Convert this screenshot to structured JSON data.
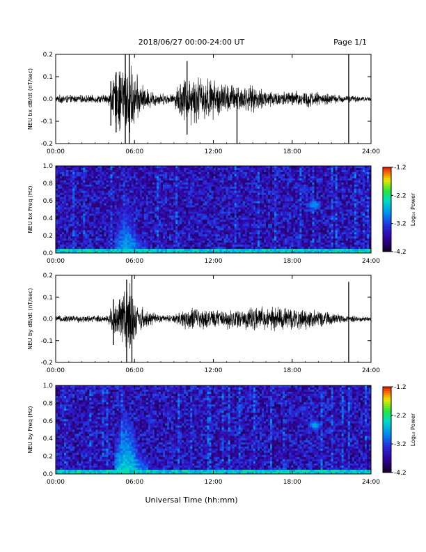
{
  "header": {
    "title": "2018/06/27  00:00-24:00 UT",
    "page": "Page 1/1"
  },
  "footer": {
    "xlabel": "Universal Time (hh:mm)"
  },
  "chart_data": [
    {
      "type": "line",
      "ylabel": "NEU bx dB/dt (nT/sec)",
      "x_ticks": [
        "00:00",
        "06:00",
        "12:00",
        "18:00",
        "24:00"
      ],
      "x_range_hours": [
        0,
        24
      ],
      "ylim": [
        -0.2,
        0.2
      ],
      "y_ticks": [
        "-0.2",
        "-0.1",
        "0.0",
        "0.1",
        "0.2"
      ],
      "envelope": [
        {
          "x": 0.0,
          "amp": 0.015
        },
        {
          "x": 0.5,
          "amp": 0.025
        },
        {
          "x": 1.0,
          "amp": 0.02
        },
        {
          "x": 2.0,
          "amp": 0.02
        },
        {
          "x": 3.0,
          "amp": 0.02
        },
        {
          "x": 4.0,
          "amp": 0.025
        },
        {
          "x": 4.3,
          "amp": 0.09
        },
        {
          "x": 4.8,
          "amp": 0.16
        },
        {
          "x": 5.2,
          "amp": 0.2
        },
        {
          "x": 5.6,
          "amp": 0.2
        },
        {
          "x": 6.0,
          "amp": 0.14
        },
        {
          "x": 6.5,
          "amp": 0.08
        },
        {
          "x": 7.0,
          "amp": 0.05
        },
        {
          "x": 8.0,
          "amp": 0.03
        },
        {
          "x": 9.0,
          "amp": 0.025
        },
        {
          "x": 9.4,
          "amp": 0.1
        },
        {
          "x": 10.2,
          "amp": 0.13
        },
        {
          "x": 11.0,
          "amp": 0.12
        },
        {
          "x": 12.0,
          "amp": 0.1
        },
        {
          "x": 13.0,
          "amp": 0.08
        },
        {
          "x": 14.0,
          "amp": 0.07
        },
        {
          "x": 15.0,
          "amp": 0.065
        },
        {
          "x": 16.0,
          "amp": 0.05
        },
        {
          "x": 17.0,
          "amp": 0.04
        },
        {
          "x": 18.0,
          "amp": 0.04
        },
        {
          "x": 19.0,
          "amp": 0.045
        },
        {
          "x": 20.0,
          "amp": 0.035
        },
        {
          "x": 21.0,
          "amp": 0.025
        },
        {
          "x": 22.0,
          "amp": 0.02
        },
        {
          "x": 23.0,
          "amp": 0.015
        },
        {
          "x": 24.0,
          "amp": 0.01
        }
      ],
      "spikes": [
        {
          "x": 4.2,
          "min": -0.12,
          "max": 0.08
        },
        {
          "x": 4.6,
          "min": -0.15,
          "max": 0.12
        },
        {
          "x": 5.3,
          "min": -0.2,
          "max": 0.2
        },
        {
          "x": 5.6,
          "min": -0.2,
          "max": 0.2
        },
        {
          "x": 10.0,
          "min": -0.16,
          "max": 0.17
        },
        {
          "x": 13.8,
          "min": -0.2,
          "max": 0.05
        },
        {
          "x": 22.3,
          "min": -0.2,
          "max": 0.2
        }
      ]
    },
    {
      "type": "heatmap",
      "ylabel": "NEU bx Freq (Hz)",
      "x_ticks": [
        "00:00",
        "06:00",
        "12:00",
        "18:00",
        "24:00"
      ],
      "ylim": [
        0.0,
        1.0
      ],
      "y_ticks": [
        "0.0",
        "0.2",
        "0.4",
        "0.6",
        "0.8",
        "1.0"
      ],
      "colorbar": {
        "label": "Log₁₀ Power",
        "ticks": [
          "-1.2",
          "-2.2",
          "-3.2",
          "-4.2"
        ],
        "range": [
          -4.2,
          -1.2
        ]
      },
      "features": [
        {
          "kind": "baseline",
          "freq_max": 0.05,
          "level": -2.2
        },
        {
          "kind": "burst",
          "t_start": 4.5,
          "t_end": 7.0,
          "freq_max": 0.4,
          "level": -2.8
        },
        {
          "kind": "blob",
          "t": 17.5,
          "freq": 0.45,
          "level": -3.2
        },
        {
          "kind": "blob",
          "t": 19.7,
          "freq": 0.55,
          "level": -2.6
        },
        {
          "kind": "blob",
          "t": 18.8,
          "freq": 0.72,
          "level": -3.0
        }
      ]
    },
    {
      "type": "line",
      "ylabel": "NEU by dB/dt (nT/sec)",
      "x_ticks": [
        "00:00",
        "06:00",
        "12:00",
        "18:00",
        "24:00"
      ],
      "x_range_hours": [
        0,
        24
      ],
      "ylim": [
        -0.2,
        0.2
      ],
      "y_ticks": [
        "-0.2",
        "-0.1",
        "0.0",
        "0.1",
        "0.2"
      ],
      "envelope": [
        {
          "x": 0.0,
          "amp": 0.015
        },
        {
          "x": 1.0,
          "amp": 0.02
        },
        {
          "x": 2.0,
          "amp": 0.018
        },
        {
          "x": 3.0,
          "amp": 0.018
        },
        {
          "x": 4.0,
          "amp": 0.02
        },
        {
          "x": 4.3,
          "amp": 0.09
        },
        {
          "x": 4.8,
          "amp": 0.1
        },
        {
          "x": 5.3,
          "amp": 0.19
        },
        {
          "x": 5.7,
          "amp": 0.2
        },
        {
          "x": 6.2,
          "amp": 0.08
        },
        {
          "x": 7.0,
          "amp": 0.04
        },
        {
          "x": 8.0,
          "amp": 0.02
        },
        {
          "x": 9.0,
          "amp": 0.02
        },
        {
          "x": 9.5,
          "amp": 0.05
        },
        {
          "x": 10.5,
          "amp": 0.06
        },
        {
          "x": 12.0,
          "amp": 0.045
        },
        {
          "x": 13.0,
          "amp": 0.05
        },
        {
          "x": 14.0,
          "amp": 0.055
        },
        {
          "x": 15.0,
          "amp": 0.06
        },
        {
          "x": 16.0,
          "amp": 0.06
        },
        {
          "x": 17.0,
          "amp": 0.065
        },
        {
          "x": 18.0,
          "amp": 0.06
        },
        {
          "x": 19.0,
          "amp": 0.055
        },
        {
          "x": 20.0,
          "amp": 0.04
        },
        {
          "x": 21.0,
          "amp": 0.03
        },
        {
          "x": 22.0,
          "amp": 0.02
        },
        {
          "x": 23.0,
          "amp": 0.015
        },
        {
          "x": 24.0,
          "amp": 0.01
        }
      ],
      "spikes": [
        {
          "x": 4.4,
          "min": -0.12,
          "max": 0.09
        },
        {
          "x": 5.4,
          "min": -0.2,
          "max": 0.18
        },
        {
          "x": 5.8,
          "min": -0.2,
          "max": 0.2
        },
        {
          "x": 22.3,
          "min": -0.2,
          "max": 0.17
        }
      ]
    },
    {
      "type": "heatmap",
      "ylabel": "NEU by Freq (Hz)",
      "x_ticks": [
        "00:00",
        "06:00",
        "12:00",
        "18:00",
        "24:00"
      ],
      "ylim": [
        0.0,
        1.0
      ],
      "y_ticks": [
        "0.0",
        "0.2",
        "0.4",
        "0.6",
        "0.8",
        "1.0"
      ],
      "colorbar": {
        "label": "Log₁₀ Power",
        "ticks": [
          "-1.2",
          "-2.2",
          "-3.2",
          "-4.2"
        ],
        "range": [
          -4.2,
          -1.2
        ]
      },
      "features": [
        {
          "kind": "baseline",
          "freq_max": 0.05,
          "level": -2.2
        },
        {
          "kind": "burst",
          "t_start": 4.5,
          "t_end": 7.0,
          "freq_max": 0.5,
          "level": -2.6
        },
        {
          "kind": "blob",
          "t": 17.5,
          "freq": 0.42,
          "level": -3.2
        },
        {
          "kind": "blob",
          "t": 19.7,
          "freq": 0.55,
          "level": -2.6
        },
        {
          "kind": "blob",
          "t": 18.8,
          "freq": 0.74,
          "level": -3.0
        }
      ]
    }
  ]
}
